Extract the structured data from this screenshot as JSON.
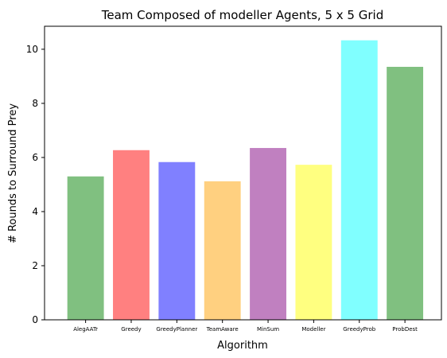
{
  "chart_data": {
    "type": "bar",
    "title": "Team Composed of modeller Agents, 5 x 5 Grid",
    "xlabel": "Algorithm",
    "ylabel": "# Rounds to Surround Prey",
    "categories": [
      "AlegAATr",
      "Greedy",
      "GreedyPlanner",
      "TeamAware",
      "MinSum",
      "Modeller",
      "GreedyProb",
      "ProbDest"
    ],
    "values": [
      5.3,
      6.27,
      5.83,
      5.12,
      6.35,
      5.73,
      10.33,
      9.35
    ],
    "colors": [
      "#80c080",
      "#ff8080",
      "#8080ff",
      "#ffd080",
      "#c080c0",
      "#ffff80",
      "#80ffff",
      "#80c080"
    ],
    "ylim": [
      0,
      10.85
    ],
    "yticks": [
      0,
      2,
      4,
      6,
      8,
      10
    ],
    "grid": false,
    "legend": "none"
  }
}
